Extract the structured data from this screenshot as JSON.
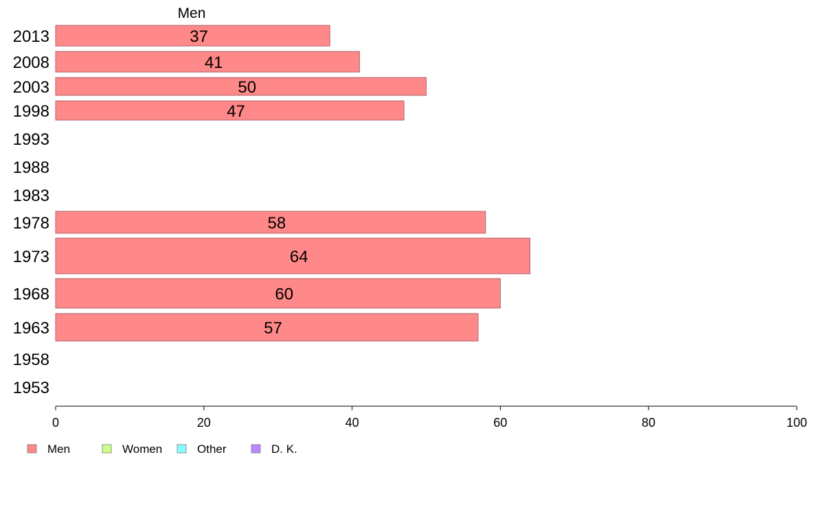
{
  "chart_data": {
    "type": "bar",
    "orientation": "horizontal",
    "categories": [
      "2013",
      "2008",
      "2003",
      "1998",
      "1993",
      "1988",
      "1983",
      "1978",
      "1973",
      "1968",
      "1963",
      "1958",
      "1953"
    ],
    "series": [
      {
        "name": "Men",
        "values": [
          37,
          41,
          50,
          47,
          null,
          null,
          null,
          58,
          64,
          60,
          57,
          null,
          null
        ],
        "labels": [
          "37",
          "41",
          "50",
          "47",
          "",
          "",
          "",
          "58",
          "64",
          "60",
          "57",
          "",
          ""
        ],
        "color": "#ff8888"
      },
      {
        "name": "Women",
        "color": "#ccff88"
      },
      {
        "name": "Other",
        "color": "#88ffff"
      },
      {
        "name": "D. K.",
        "color": "#bb88ff"
      }
    ],
    "series_header": "Men",
    "xlim": [
      0,
      100
    ],
    "xticks": [
      "0",
      "20",
      "40",
      "60",
      "80",
      "100"
    ],
    "grid": false,
    "legend_position": "bottom-left"
  }
}
